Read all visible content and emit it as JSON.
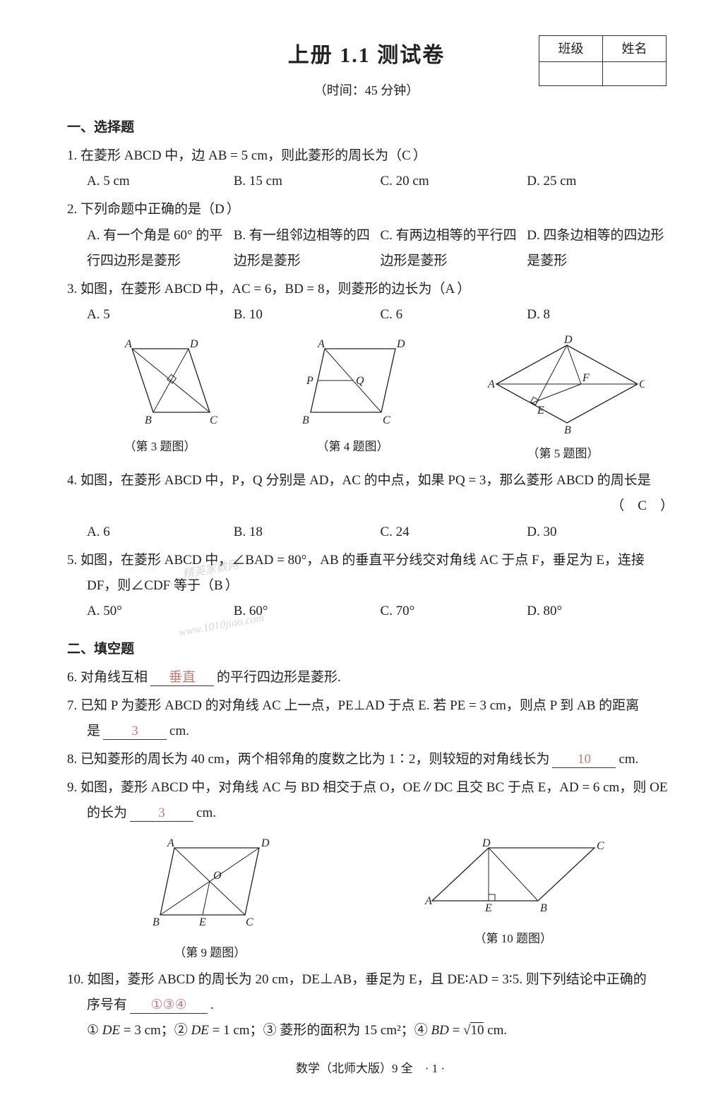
{
  "header": {
    "title": "上册 1.1 测试卷",
    "subtitle": "（时间：45 分钟）",
    "info_labels": [
      "班级",
      "姓名"
    ]
  },
  "sections": {
    "s1": "一、选择题",
    "s2": "二、填空题"
  },
  "q1": {
    "text": "1. 在菱形 ABCD 中，边 AB = 5 cm，则此菱形的周长为（",
    "ans": "C",
    "tail": "）",
    "A": "A. 5  cm",
    "B": "B. 15  cm",
    "C": "C. 20  cm",
    "D": "D. 25  cm"
  },
  "q2": {
    "text": "2. 下列命题中正确的是（",
    "ans": "D",
    "tail": "）",
    "A": "A. 有一个角是 60° 的平行四边形是菱形",
    "B": "B. 有一组邻边相等的四边形是菱形",
    "C": "C. 有两边相等的平行四边形是菱形",
    "D": "D. 四条边相等的四边形是菱形"
  },
  "q3": {
    "text": "3. 如图，在菱形 ABCD 中，AC = 6，BD = 8，则菱形的边长为（",
    "ans": "A",
    "tail": "）",
    "A": "A. 5",
    "B": "B. 10",
    "C": "C. 6",
    "D": "D. 8"
  },
  "fig_caps": {
    "f3": "（第 3 题图）",
    "f4": "（第 4 题图）",
    "f5": "（第 5 题图）",
    "f9": "（第 9 题图）",
    "f10": "（第 10 题图）"
  },
  "q4": {
    "text": "4. 如图，在菱形 ABCD 中，P，Q 分别是 AD，AC 的中点，如果 PQ = 3，那么菱形 ABCD 的周长是",
    "ans": "C",
    "par": "（　C　）",
    "A": "A. 6",
    "B": "B. 18",
    "C": "C. 24",
    "D": "D. 30"
  },
  "q5": {
    "line1": "5. 如图，在菱形 ABCD 中，∠BAD = 80°，AB 的垂直平分线交对角线 AC 于点 F，垂足为 E，连接",
    "line2": "DF，则∠CDF 等于（",
    "ans": "B",
    "tail": "）",
    "A": "A. 50°",
    "B": "B. 60°",
    "C": "C. 70°",
    "D": "D. 80°"
  },
  "q6": {
    "pre": "6. 对角线互相",
    "ans": "垂直",
    "post": "的平行四边形是菱形."
  },
  "q7": {
    "line1": "7. 已知 P 为菱形 ABCD 的对角线 AC 上一点，PE⊥AD 于点 E. 若 PE = 3 cm，则点 P 到 AB 的距离",
    "line2a": "是",
    "ans": "3",
    "line2b": "cm."
  },
  "q8": {
    "pre": "8. 已知菱形的周长为 40 cm，两个相邻角的度数之比为 1∶2，则较短的对角线长为",
    "ans": "10",
    "post": "cm."
  },
  "q9": {
    "line1": "9. 如图，菱形 ABCD 中，对角线 AC 与 BD 相交于点 O，OE∥DC 且交 BC 于点 E，AD = 6 cm，则 OE",
    "line2a": "的长为",
    "ans": "3",
    "line2b": "cm."
  },
  "q10": {
    "line1": "10. 如图，菱形 ABCD 的周长为 20 cm，DE⊥AB，垂足为 E，且 DE∶AD = 3∶5. 则下列结论中正确的",
    "line2a": "序号有",
    "ans": "①③④",
    "line2b": ".",
    "opts": "① DE = 3 cm；② DE = 1 cm；③ 菱形的面积为 15 cm²；④ BD = √10 cm."
  },
  "footer": "数学（北师大版）9 全　·  1  ·",
  "svg": {
    "fig3": {
      "A": "A",
      "B": "B",
      "C": "C",
      "D": "D"
    },
    "fig4": {
      "A": "A",
      "D": "D",
      "P": "P",
      "Q": "Q",
      "B": "B",
      "C": "C"
    },
    "fig5": {
      "A": "A",
      "B": "B",
      "C": "C",
      "D": "D",
      "E": "E",
      "F": "F"
    },
    "fig9": {
      "A": "A",
      "B": "B",
      "C": "C",
      "D": "D",
      "E": "E",
      "O": "O"
    },
    "fig10": {
      "A": "A",
      "B": "B",
      "C": "C",
      "D": "D",
      "E": "E"
    }
  },
  "colors": {
    "text": "#222",
    "answer": "#c97a7a",
    "watermark": "#d35a5a"
  }
}
